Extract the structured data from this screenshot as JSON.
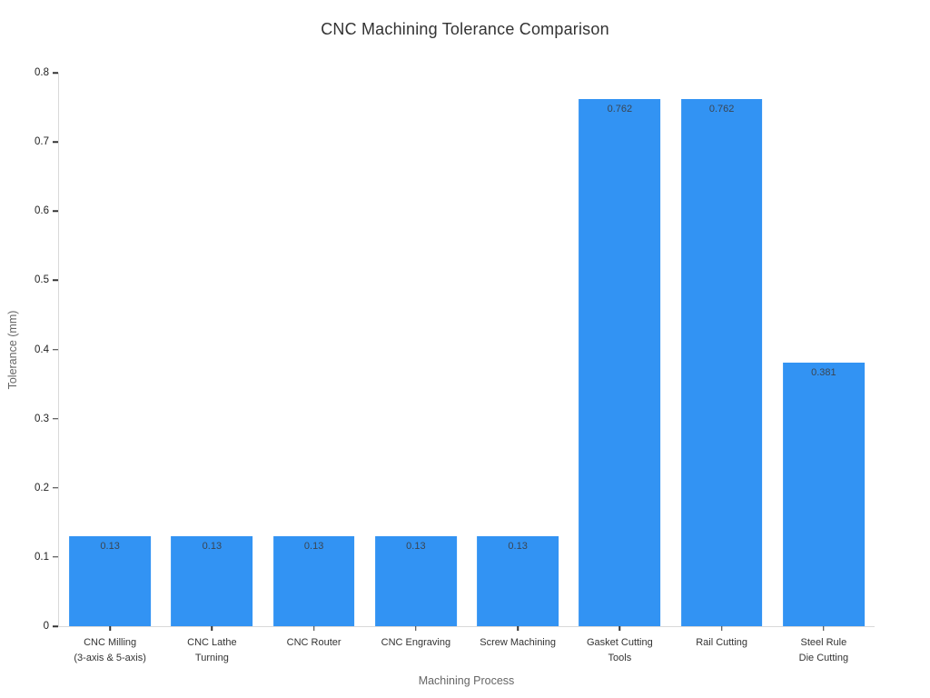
{
  "chart_data": {
    "type": "bar",
    "title": "CNC Machining Tolerance Comparison",
    "xlabel": "Machining Process",
    "ylabel": "Tolerance (mm)",
    "categories": [
      "CNC Milling\n(3-axis & 5-axis)",
      "CNC Lathe\nTurning",
      "CNC Router",
      "CNC Engraving",
      "Screw Machining",
      "Gasket Cutting\nTools",
      "Rail Cutting",
      "Steel Rule\nDie Cutting"
    ],
    "values": [
      0.13,
      0.13,
      0.13,
      0.13,
      0.13,
      0.762,
      0.762,
      0.381
    ],
    "value_labels": [
      "0.13",
      "0.13",
      "0.13",
      "0.13",
      "0.13",
      "0.762",
      "0.762",
      "0.381"
    ],
    "ylim": [
      0,
      0.8
    ],
    "yticks": [
      0,
      0.1,
      0.2,
      0.3,
      0.4,
      0.5,
      0.6,
      0.7,
      0.8
    ],
    "ytick_labels": [
      "0",
      "0.1",
      "0.2",
      "0.3",
      "0.4",
      "0.5",
      "0.6",
      "0.7",
      "0.8"
    ],
    "bar_color": "#3293f3",
    "value_label_color": "#3a4552",
    "tick_color": "#333333",
    "spine_color": "#d9d9d9",
    "grid": false,
    "legend": false,
    "legend_position": "none"
  }
}
